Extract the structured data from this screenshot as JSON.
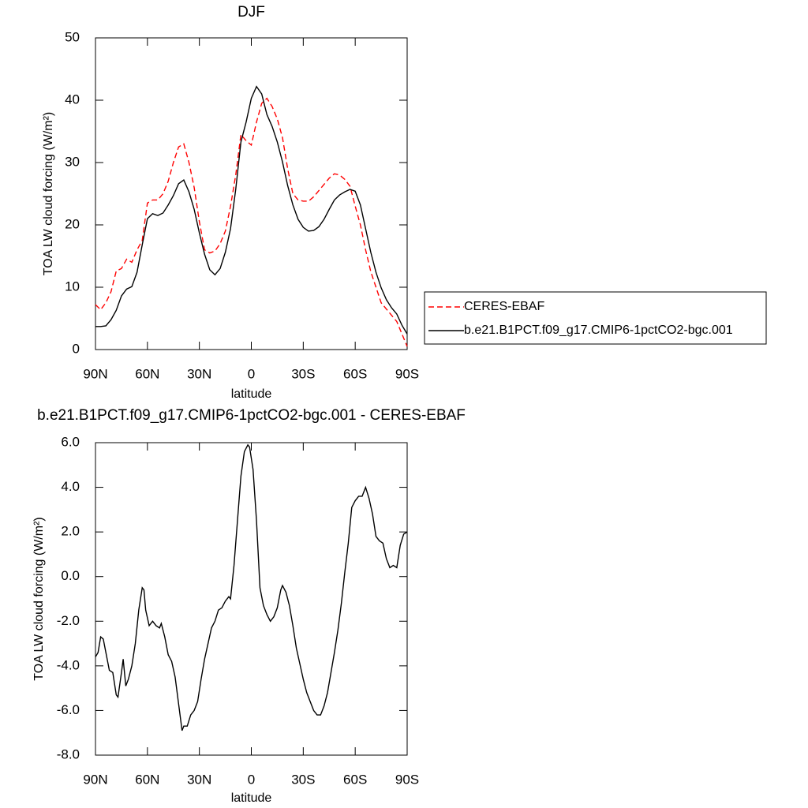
{
  "chart_data": [
    {
      "type": "line",
      "title": "DJF",
      "xlabel": "latitude",
      "ylabel": "TOA LW cloud forcing (W/m²)",
      "x": [
        90,
        87,
        84,
        81,
        78,
        75,
        72,
        69,
        66,
        63,
        60,
        57,
        54,
        51,
        48,
        45,
        42,
        39,
        36,
        33,
        30,
        27,
        24,
        21,
        18,
        15,
        12,
        9,
        6,
        3,
        0,
        -3,
        -6,
        -9,
        -12,
        -15,
        -18,
        -21,
        -24,
        -27,
        -30,
        -33,
        -36,
        -39,
        -42,
        -45,
        -48,
        -51,
        -54,
        -57,
        -60,
        -63,
        -66,
        -69,
        -72,
        -75,
        -78,
        -81,
        -84,
        -87,
        -90
      ],
      "series": [
        {
          "name": "CERES-EBAF",
          "color": "#ff0000",
          "dash": "dashed",
          "values": [
            7.2,
            6.4,
            7.5,
            9.3,
            12.6,
            13,
            14.5,
            14,
            16,
            17.5,
            23.5,
            24,
            24,
            25,
            27,
            30,
            32.5,
            33,
            30,
            26,
            20.5,
            16,
            15.5,
            15.8,
            17,
            19,
            23,
            28,
            34.5,
            33.5,
            32.8,
            36.5,
            39.5,
            40.3,
            39,
            37,
            34,
            29,
            25,
            24,
            23.8,
            23.8,
            24.5,
            25.5,
            26.5,
            27.5,
            28.2,
            28,
            27.3,
            26.2,
            23,
            20,
            16,
            12.5,
            10,
            7.5,
            6.5,
            5.5,
            4.5,
            2.5,
            0.5
          ]
        },
        {
          "name": "b.e21.B1PCT.f09_g17.CMIP6-1pctCO2-bgc.001",
          "color": "#000000",
          "dash": "solid",
          "values": [
            3.7,
            3.7,
            3.8,
            4.8,
            6.3,
            8.6,
            9.7,
            10.1,
            12.4,
            16.8,
            21,
            21.8,
            21.5,
            21.9,
            23.2,
            24.7,
            26.6,
            27.2,
            25.3,
            22.5,
            18.7,
            15.3,
            12.8,
            12,
            13,
            15.6,
            19.4,
            25.7,
            33.3,
            36.5,
            40.3,
            42.2,
            41,
            37.7,
            35.8,
            33.3,
            30.1,
            26.3,
            23.2,
            20.9,
            19.6,
            19,
            19.1,
            19.7,
            20.9,
            22.5,
            24,
            24.8,
            25.3,
            25.7,
            25.4,
            23.2,
            19.4,
            15.6,
            12.4,
            9.9,
            8,
            6.7,
            5.7,
            3.9,
            2.5
          ]
        }
      ],
      "xlim": [
        90,
        -90
      ],
      "xticks": [
        {
          "value": 90,
          "label": "90N"
        },
        {
          "value": 60,
          "label": "60N"
        },
        {
          "value": 30,
          "label": "30N"
        },
        0,
        {
          "value": -30,
          "label": "30S"
        },
        {
          "value": -60,
          "label": "60S"
        },
        {
          "value": -90,
          "label": "90S"
        }
      ],
      "ylim": [
        0,
        50
      ],
      "yticks": [
        0,
        10,
        20,
        30,
        40,
        50
      ],
      "legend": "right"
    },
    {
      "type": "line",
      "title": "b.e21.B1PCT.f09_g17.CMIP6-1pctCO2-bgc.001 - CERES-EBAF",
      "xlabel": "latitude",
      "ylabel": "TOA LW cloud forcing (W/m²)",
      "x": [
        90,
        88.5,
        87,
        85.5,
        84,
        82,
        80,
        78,
        77,
        75,
        74,
        72.5,
        71,
        69,
        67,
        65,
        63,
        62,
        61,
        59,
        57,
        55,
        53,
        52,
        50,
        48,
        46,
        44,
        42,
        40,
        39,
        37,
        35,
        33,
        31,
        29,
        27,
        25,
        23,
        21,
        19,
        17,
        15,
        13,
        12,
        10,
        8,
        6,
        4,
        2,
        1,
        -1,
        -3,
        -5,
        -7,
        -9,
        -11,
        -13,
        -15,
        -17,
        -18,
        -20,
        -22,
        -24,
        -26,
        -28,
        -30,
        -32,
        -34,
        -36,
        -38,
        -40,
        -42,
        -44,
        -46,
        -48,
        -50,
        -52,
        -54,
        -56,
        -58,
        -60,
        -62,
        -64,
        -66,
        -68,
        -70,
        -72,
        -74,
        -76,
        -78,
        -80,
        -82,
        -84,
        -86,
        -88,
        -90
      ],
      "series": [
        {
          "color": "#000000",
          "dash": "solid",
          "values": [
            -3.6,
            -3.4,
            -2.7,
            -2.8,
            -3.4,
            -4.2,
            -4.3,
            -5.3,
            -5.4,
            -4.3,
            -3.7,
            -4.9,
            -4.6,
            -4.0,
            -3.0,
            -1.5,
            -0.5,
            -0.6,
            -1.5,
            -2.2,
            -2.0,
            -2.2,
            -2.3,
            -2.1,
            -2.7,
            -3.5,
            -3.8,
            -4.5,
            -5.7,
            -6.9,
            -6.7,
            -6.7,
            -6.2,
            -6.0,
            -5.6,
            -4.6,
            -3.7,
            -3.0,
            -2.3,
            -2.0,
            -1.5,
            -1.4,
            -1.1,
            -0.9,
            -1.0,
            0.5,
            2.5,
            4.5,
            5.6,
            5.9,
            5.8,
            4.8,
            2.5,
            -0.5,
            -1.3,
            -1.7,
            -2.0,
            -1.8,
            -1.4,
            -0.6,
            -0.4,
            -0.7,
            -1.3,
            -2.2,
            -3.2,
            -3.9,
            -4.6,
            -5.2,
            -5.6,
            -6.0,
            -6.2,
            -6.2,
            -5.8,
            -5.2,
            -4.3,
            -3.4,
            -2.4,
            -1.2,
            0.2,
            1.5,
            3.1,
            3.4,
            3.6,
            3.6,
            4.0,
            3.5,
            2.8,
            1.8,
            1.6,
            1.5,
            0.8,
            0.4,
            0.5,
            0.4,
            1.4,
            1.9,
            2.0
          ]
        }
      ],
      "xlim": [
        90,
        -90
      ],
      "xticks": [
        {
          "value": 90,
          "label": "90N"
        },
        {
          "value": 60,
          "label": "60N"
        },
        {
          "value": 30,
          "label": "30N"
        },
        0,
        {
          "value": -30,
          "label": "30S"
        },
        {
          "value": -60,
          "label": "60S"
        },
        {
          "value": -90,
          "label": "90S"
        }
      ],
      "ylim": [
        -8,
        6
      ],
      "yticks": [
        {
          "value": -8,
          "label": "-8.0"
        },
        {
          "value": -6,
          "label": "-6.0"
        },
        {
          "value": -4,
          "label": "-4.0"
        },
        {
          "value": -2,
          "label": "-2.0"
        },
        {
          "value": 0,
          "label": "0.0"
        },
        {
          "value": 2,
          "label": "2.0"
        },
        {
          "value": 4,
          "label": "4.0"
        },
        {
          "value": 6,
          "label": "6.0"
        }
      ]
    }
  ]
}
